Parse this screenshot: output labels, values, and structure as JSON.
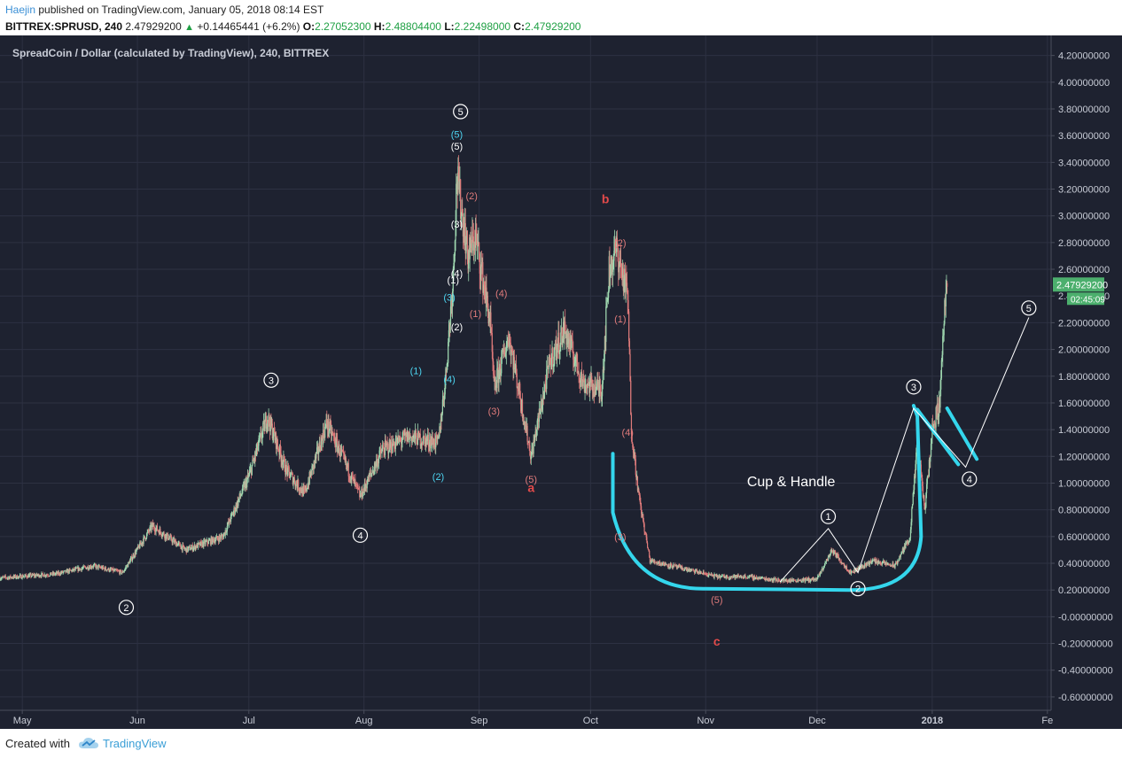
{
  "header": {
    "user": "Haejin",
    "published": "published on TradingView.com, January 05, 2018 08:14 EST",
    "symbol": "BITTREX:SPRUSD, 240",
    "last": "2.47929200",
    "change": "+0.14465441 (+6.2%)",
    "o_label": "O:",
    "o_value": "2.27052300",
    "h_label": "H:",
    "h_value": "2.48804400",
    "l_label": "L:",
    "l_value": "2.22498000",
    "c_label": "C:",
    "c_value": "2.47929200"
  },
  "footer": {
    "created_with": "Created with",
    "brand": "TradingView"
  },
  "colors": {
    "background": "#1e2230",
    "grid": "#2d3142",
    "up": "#9fd8b0",
    "down": "#e07b7b",
    "cyan_label": "#4dd4f0",
    "red_label": "#e24a4a",
    "pattern": "#34d6ec",
    "price_tag": "#4caf6d"
  },
  "chart_data": {
    "type": "candlestick",
    "title": "SpreadCoin / Dollar (calculated by TradingView), 240, BITTREX",
    "ylim": [
      -0.7,
      4.35
    ],
    "y_ticks": [
      "4.20000000",
      "4.00000000",
      "3.80000000",
      "3.60000000",
      "3.40000000",
      "3.20000000",
      "3.00000000",
      "2.80000000",
      "2.60000000",
      "2.40000000",
      "2.20000000",
      "2.00000000",
      "1.80000000",
      "1.60000000",
      "1.40000000",
      "1.20000000",
      "1.00000000",
      "0.80000000",
      "0.60000000",
      "0.40000000",
      "0.20000000",
      "-0.00000000",
      "-0.20000000",
      "-0.40000000",
      "-0.60000000"
    ],
    "x_ticks": [
      "May",
      "Jun",
      "Jul",
      "Aug",
      "Sep",
      "Oct",
      "Nov",
      "Dec",
      "2018",
      "Fe"
    ],
    "x_range": [
      "2017-04-25",
      "2018-02-02"
    ],
    "last_price": "2.47929200",
    "countdown": "02:45:09",
    "price_path": [
      [
        "2017-04-25",
        0.29
      ],
      [
        "2017-05-10",
        0.32
      ],
      [
        "2017-05-20",
        0.38
      ],
      [
        "2017-05-28",
        0.33
      ],
      [
        "2017-06-05",
        0.68
      ],
      [
        "2017-06-14",
        0.5
      ],
      [
        "2017-06-24",
        0.6
      ],
      [
        "2017-07-01",
        1.05
      ],
      [
        "2017-07-06",
        1.5
      ],
      [
        "2017-07-11",
        1.1
      ],
      [
        "2017-07-16",
        0.92
      ],
      [
        "2017-07-22",
        1.45
      ],
      [
        "2017-07-31",
        0.9
      ],
      [
        "2017-08-06",
        1.25
      ],
      [
        "2017-08-13",
        1.35
      ],
      [
        "2017-08-21",
        1.3
      ],
      [
        "2017-08-23",
        1.8
      ],
      [
        "2017-08-25",
        2.55
      ],
      [
        "2017-08-26",
        3.3
      ],
      [
        "2017-08-29",
        2.7
      ],
      [
        "2017-08-31",
        2.85
      ],
      [
        "2017-09-04",
        2.2
      ],
      [
        "2017-09-05",
        1.7
      ],
      [
        "2017-09-09",
        2.1
      ],
      [
        "2017-09-15",
        1.2
      ],
      [
        "2017-09-20",
        1.9
      ],
      [
        "2017-09-24",
        2.15
      ],
      [
        "2017-09-29",
        1.75
      ],
      [
        "2017-10-04",
        1.7
      ],
      [
        "2017-10-06",
        2.6
      ],
      [
        "2017-10-08",
        2.75
      ],
      [
        "2017-10-11",
        2.4
      ],
      [
        "2017-10-12",
        1.4
      ],
      [
        "2017-10-14",
        0.9
      ],
      [
        "2017-10-17",
        0.42
      ],
      [
        "2017-10-26",
        0.36
      ],
      [
        "2017-11-04",
        0.3
      ],
      [
        "2017-11-12",
        0.3
      ],
      [
        "2017-11-22",
        0.27
      ],
      [
        "2017-12-01",
        0.28
      ],
      [
        "2017-12-05",
        0.5
      ],
      [
        "2017-12-10",
        0.33
      ],
      [
        "2017-12-16",
        0.42
      ],
      [
        "2017-12-22",
        0.38
      ],
      [
        "2017-12-26",
        0.6
      ],
      [
        "2017-12-28",
        1.3
      ],
      [
        "2017-12-30",
        0.8
      ],
      [
        "2018-01-01",
        1.4
      ],
      [
        "2018-01-03",
        1.6
      ],
      [
        "2018-01-04",
        2.2
      ],
      [
        "2018-01-05",
        2.479
      ]
    ],
    "annotations": {
      "primary_waves": [
        {
          "label": "2",
          "date": "2017-05-29",
          "price": 0.07
        },
        {
          "label": "3",
          "date": "2017-07-07",
          "price": 1.77
        },
        {
          "label": "4",
          "date": "2017-07-31",
          "price": 0.61
        },
        {
          "label": "5",
          "date": "2017-08-27",
          "price": 3.78
        },
        {
          "label": "1",
          "date": "2017-12-04",
          "price": 0.75
        },
        {
          "label": "2",
          "date": "2017-12-12",
          "price": 0.21
        },
        {
          "label": "3",
          "date": "2017-12-27",
          "price": 1.72
        },
        {
          "label": "4",
          "date": "2018-01-11",
          "price": 1.03
        },
        {
          "label": "5",
          "date": "2018-01-27",
          "price": 2.31
        }
      ],
      "cyan_labels": [
        {
          "label": "(1)",
          "date": "2017-08-15",
          "price": 1.84
        },
        {
          "label": "(2)",
          "date": "2017-08-21",
          "price": 1.05
        },
        {
          "label": "(3)",
          "date": "2017-08-24",
          "price": 2.39
        },
        {
          "label": "(4)",
          "date": "2017-08-24",
          "price": 1.78
        },
        {
          "label": "(5)",
          "date": "2017-08-26",
          "price": 3.61
        }
      ],
      "white_labels": [
        {
          "label": "(5)",
          "date": "2017-08-26",
          "price": 3.52
        },
        {
          "label": "(3)",
          "date": "2017-08-26",
          "price": 2.94
        },
        {
          "label": "(4)",
          "date": "2017-08-26",
          "price": 2.57
        },
        {
          "label": "(1)",
          "date": "2017-08-25",
          "price": 2.52
        },
        {
          "label": "(2)",
          "date": "2017-08-26",
          "price": 2.17
        }
      ],
      "red_labels": [
        {
          "label": "(2)",
          "date": "2017-08-30",
          "price": 3.15
        },
        {
          "label": "(1)",
          "date": "2017-08-31",
          "price": 2.27
        },
        {
          "label": "(4)",
          "date": "2017-09-07",
          "price": 2.42
        },
        {
          "label": "(3)",
          "date": "2017-09-05",
          "price": 1.54
        },
        {
          "label": "(5)",
          "date": "2017-09-15",
          "price": 1.03
        },
        {
          "label": "(2)",
          "date": "2017-10-09",
          "price": 2.8
        },
        {
          "label": "(1)",
          "date": "2017-10-09",
          "price": 2.23
        },
        {
          "label": "(4)",
          "date": "2017-10-11",
          "price": 1.38
        },
        {
          "label": "(3)",
          "date": "2017-10-09",
          "price": 0.6
        },
        {
          "label": "(5)",
          "date": "2017-11-04",
          "price": 0.13
        }
      ],
      "abc_labels": [
        {
          "label": "a",
          "date": "2017-09-15",
          "price": 0.96
        },
        {
          "label": "b",
          "date": "2017-10-05",
          "price": 3.12
        },
        {
          "label": "c",
          "date": "2017-11-04",
          "price": -0.19
        }
      ],
      "pattern_text": {
        "label": "Cup & Handle",
        "date": "2017-11-24",
        "price": 1.01
      }
    }
  }
}
